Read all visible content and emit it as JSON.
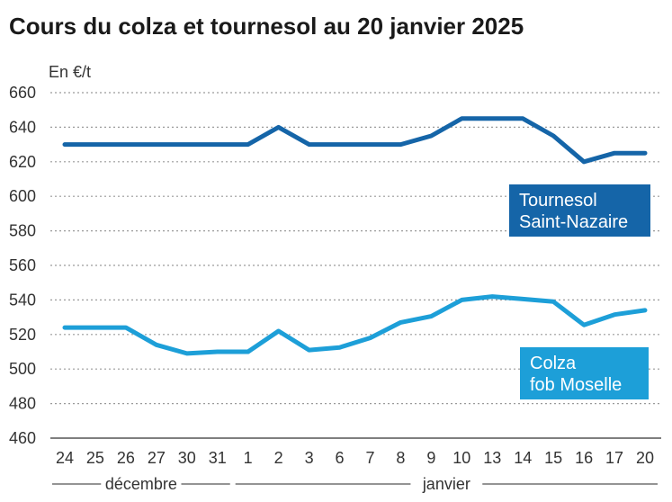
{
  "chart_data": {
    "type": "line",
    "title": "Cours du colza et tournesol au 20 janvier 2025",
    "ylabel": "En €/t",
    "xlabel": "",
    "ylim": [
      460,
      660
    ],
    "yticks": [
      460,
      480,
      500,
      520,
      540,
      560,
      580,
      600,
      620,
      640,
      660
    ],
    "categories": [
      "24",
      "25",
      "26",
      "27",
      "30",
      "31",
      "1",
      "2",
      "3",
      "6",
      "7",
      "8",
      "9",
      "10",
      "13",
      "14",
      "15",
      "16",
      "17",
      "20"
    ],
    "periods": [
      {
        "label": "décembre",
        "from": 0,
        "to": 5
      },
      {
        "label": "janvier",
        "from": 6,
        "to": 19
      }
    ],
    "grid": true,
    "series": [
      {
        "name_lines": [
          "Tournesol",
          "Saint-Nazaire"
        ],
        "color": "#1565a8",
        "values": [
          630,
          630,
          630,
          630,
          630,
          630,
          630,
          640,
          630,
          630,
          630,
          630,
          635,
          645,
          645,
          645,
          635,
          620,
          625,
          625
        ]
      },
      {
        "name_lines": [
          "Colza",
          "fob Moselle"
        ],
        "color": "#1d9fd8",
        "values": [
          524,
          524,
          524,
          514,
          509,
          510,
          510,
          522,
          511,
          512.5,
          518,
          527,
          530.5,
          540,
          542,
          540.5,
          539,
          525.5,
          531.5,
          534
        ]
      }
    ]
  }
}
